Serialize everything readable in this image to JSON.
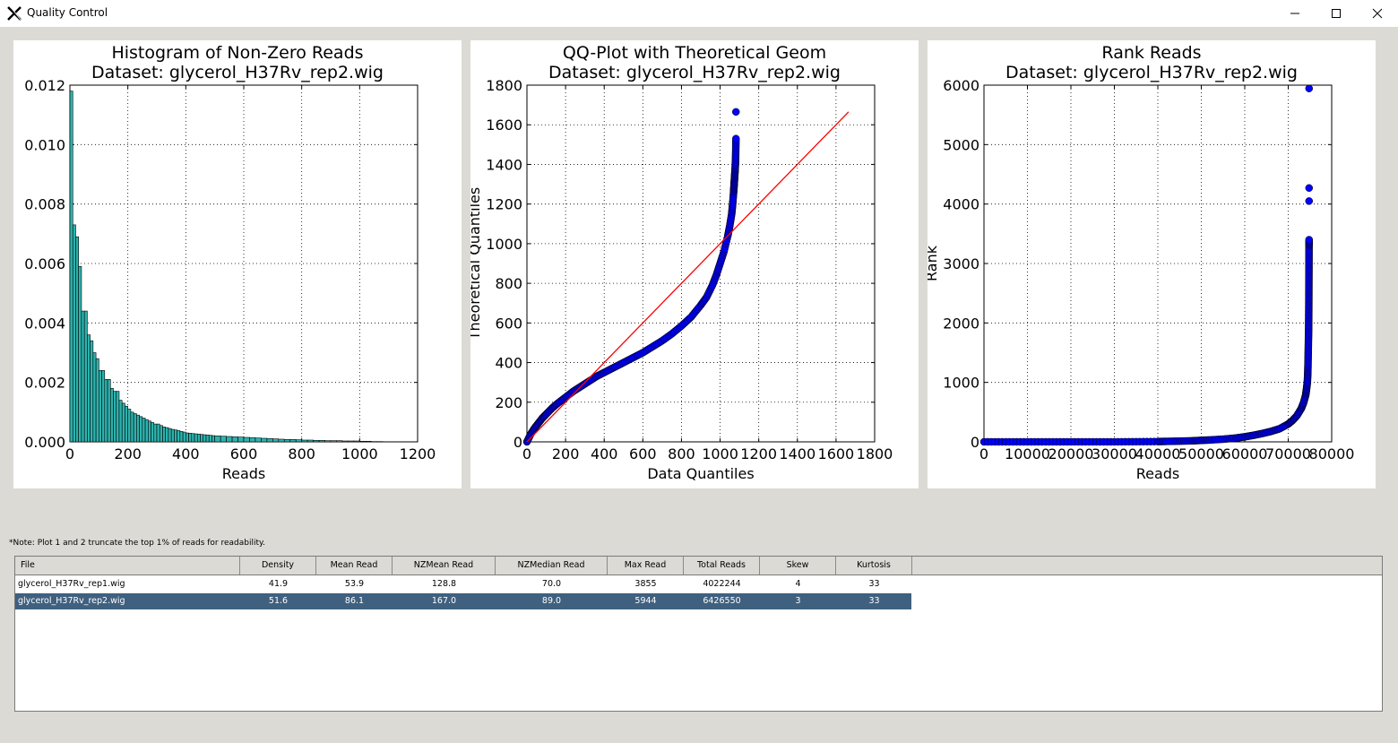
{
  "window": {
    "title": "Quality Control"
  },
  "note": "*Note: Plot 1 and 2 truncate the top 1% of reads for readability.",
  "table": {
    "columns": [
      "File",
      "Density",
      "Mean Read",
      "NZMean Read",
      "NZMedian Read",
      "Max Read",
      "Total Reads",
      "Skew",
      "Kurtosis"
    ],
    "rows": [
      {
        "file": "glycerol_H37Rv_rep1.wig",
        "density": "41.9",
        "mean": "53.9",
        "nzmean": "128.8",
        "nzmedian": "70.0",
        "max": "3855",
        "total": "4022244",
        "skew": "4",
        "kurtosis": "33",
        "selected": false
      },
      {
        "file": "glycerol_H37Rv_rep2.wig",
        "density": "51.6",
        "mean": "86.1",
        "nzmean": "167.0",
        "nzmedian": "89.0",
        "max": "5944",
        "total": "6426550",
        "skew": "3",
        "kurtosis": "33",
        "selected": true
      }
    ]
  },
  "colors": {
    "histogram_fill": "#2db3ae",
    "points": "#0000ff",
    "fit_line": "#ff0000",
    "selection": "#40607f"
  },
  "chart_data": [
    {
      "type": "bar",
      "title": "Histogram of Non-Zero Reads",
      "subtitle": "Dataset: glycerol_H37Rv_rep2.wig",
      "xlabel": "Reads",
      "ylabel": "",
      "xlim": [
        0,
        1200
      ],
      "ylim": [
        0,
        0.012
      ],
      "xticks": [
        "0",
        "200",
        "400",
        "600",
        "800",
        "1000",
        "1200"
      ],
      "yticks": [
        "0.000",
        "0.002",
        "0.004",
        "0.006",
        "0.008",
        "0.010",
        "0.012"
      ],
      "grid": true,
      "bin_width": 10,
      "bin_starts": [
        0,
        10,
        20,
        30,
        40,
        50,
        60,
        70,
        80,
        90,
        100,
        110,
        120,
        130,
        140,
        150,
        160,
        170,
        180,
        190,
        200,
        210,
        220,
        230,
        240,
        250,
        260,
        270,
        280,
        290,
        300,
        310,
        320,
        330,
        340,
        350,
        360,
        370,
        380,
        390,
        400,
        410,
        420,
        430,
        440,
        450,
        460,
        470,
        480,
        490,
        500,
        520,
        540,
        560,
        580,
        600,
        620,
        640,
        660,
        680,
        700,
        720,
        740,
        760,
        780,
        800,
        820,
        840,
        860,
        880,
        900,
        920,
        940,
        960,
        980,
        1000,
        1020,
        1040,
        1060
      ],
      "values": [
        0.0118,
        0.0073,
        0.0069,
        0.0059,
        0.0044,
        0.0044,
        0.0036,
        0.0034,
        0.003,
        0.0028,
        0.0024,
        0.0024,
        0.0021,
        0.0021,
        0.0018,
        0.0017,
        0.0017,
        0.0014,
        0.0013,
        0.0012,
        0.0011,
        0.001,
        0.00095,
        0.0009,
        0.00085,
        0.0008,
        0.00075,
        0.0007,
        0.00065,
        0.0006,
        0.0006,
        0.00055,
        0.0005,
        0.00048,
        0.00045,
        0.00042,
        0.0004,
        0.00038,
        0.00035,
        0.00033,
        0.0003,
        0.00029,
        0.00028,
        0.00027,
        0.00026,
        0.00025,
        0.00024,
        0.00023,
        0.00022,
        0.00021,
        0.0002,
        0.00019,
        0.00018,
        0.00017,
        0.00016,
        0.00015,
        0.00014,
        0.00013,
        0.00012,
        0.00011,
        0.0001,
        9e-05,
        8e-05,
        8e-05,
        7e-05,
        6e-05,
        6e-05,
        5e-05,
        5e-05,
        4e-05,
        4e-05,
        4e-05,
        3e-05,
        3e-05,
        3e-05,
        2e-05,
        2e-05,
        1e-05,
        1e-05
      ]
    },
    {
      "type": "scatter",
      "title": "QQ-Plot with Theoretical Geom",
      "subtitle": "Dataset: glycerol_H37Rv_rep2.wig",
      "xlabel": "Data Quantiles",
      "ylabel": "Theoretical Quantiles",
      "xlim": [
        0,
        1800
      ],
      "ylim": [
        0,
        1800
      ],
      "xticks": [
        "0",
        "200",
        "400",
        "600",
        "800",
        "1000",
        "1200",
        "1400",
        "1600",
        "1800"
      ],
      "yticks": [
        "0",
        "200",
        "400",
        "600",
        "800",
        "1000",
        "1200",
        "1400",
        "1600",
        "1800"
      ],
      "grid": true,
      "x": [
        0,
        20,
        40,
        60,
        80,
        100,
        130,
        160,
        200,
        240,
        280,
        320,
        360,
        400,
        450,
        500,
        550,
        600,
        650,
        700,
        750,
        800,
        850,
        900,
        930,
        960,
        980,
        1000,
        1020,
        1040,
        1050,
        1060,
        1065,
        1070,
        1072,
        1074,
        1076,
        1078,
        1080,
        1081,
        1082
      ],
      "y": [
        0,
        40,
        70,
        95,
        120,
        140,
        170,
        195,
        225,
        255,
        280,
        305,
        330,
        350,
        375,
        400,
        425,
        450,
        480,
        510,
        545,
        585,
        630,
        690,
        730,
        790,
        840,
        900,
        960,
        1040,
        1090,
        1150,
        1200,
        1260,
        1290,
        1320,
        1350,
        1380,
        1420,
        1470,
        1530
      ],
      "outlier": {
        "x": 1082,
        "y": 1665
      },
      "fit_line": {
        "x": [
          0,
          1665
        ],
        "y": [
          0,
          1665
        ]
      }
    },
    {
      "type": "scatter",
      "title": "Rank Reads",
      "subtitle": "Dataset: glycerol_H37Rv_rep2.wig",
      "xlabel": "Reads",
      "ylabel": "Rank",
      "xlim": [
        0,
        80000
      ],
      "ylim": [
        0,
        6000
      ],
      "xticks": [
        "0",
        "10000",
        "20000",
        "30000",
        "40000",
        "50000",
        "60000",
        "70000",
        "80000"
      ],
      "yticks": [
        "0",
        "1000",
        "2000",
        "3000",
        "4000",
        "5000",
        "6000"
      ],
      "grid": true,
      "x": [
        0,
        5000,
        10000,
        15000,
        20000,
        25000,
        30000,
        35000,
        40000,
        42000,
        45000,
        48000,
        50000,
        52000,
        55000,
        58000,
        60000,
        62000,
        64000,
        66000,
        68000,
        70000,
        71000,
        72000,
        73000,
        73500,
        74000,
        74200,
        74400,
        74500,
        74550,
        74600,
        74650,
        74700,
        74720,
        74740,
        74750,
        74760,
        74770,
        74780,
        74790,
        74800
      ],
      "y": [
        0,
        0,
        0,
        0,
        0,
        0,
        0,
        2,
        5,
        8,
        12,
        18,
        25,
        32,
        45,
        65,
        85,
        110,
        140,
        175,
        220,
        300,
        360,
        440,
        560,
        650,
        780,
        880,
        1000,
        1150,
        1300,
        1500,
        1700,
        1900,
        2100,
        2300,
        2500,
        2700,
        2900,
        3100,
        3300,
        3400
      ],
      "outliers": [
        {
          "x": 74800,
          "y": 4050
        },
        {
          "x": 74800,
          "y": 4270
        },
        {
          "x": 74800,
          "y": 5944
        }
      ]
    }
  ]
}
